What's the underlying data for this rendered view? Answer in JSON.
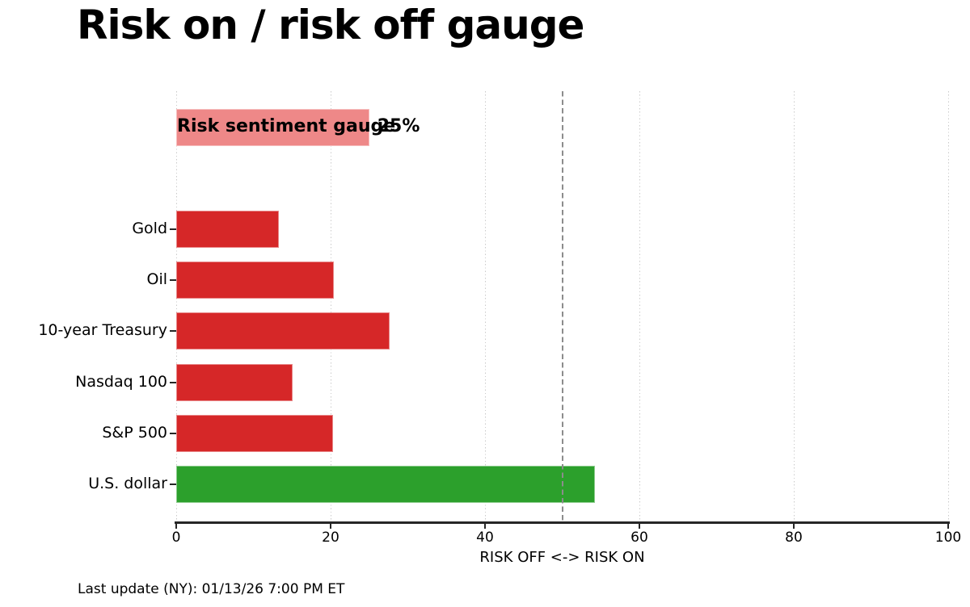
{
  "chart_data": {
    "type": "bar",
    "orientation": "horizontal",
    "title": "Risk on / risk off gauge",
    "xlabel": "RISK OFF <-> RISK ON",
    "footer": "Last update (NY): 01/13/26 7:00 PM ET",
    "xlim": [
      0,
      100
    ],
    "xticks": [
      0,
      20,
      40,
      60,
      80,
      100
    ],
    "grid": "dotted-vertical",
    "legend_position": "none",
    "threshold_line": {
      "x": 50,
      "style": "dashed",
      "color": "#8c8c8c"
    },
    "gauge": {
      "label": "Risk sentiment gauge",
      "value": 25,
      "value_label": "25%",
      "color": "#ee8888",
      "slot": 0
    },
    "series": [
      {
        "label": "Gold",
        "value": 13.3,
        "color": "#d62728",
        "slot": 2
      },
      {
        "label": "Oil",
        "value": 20.4,
        "color": "#d62728",
        "slot": 3
      },
      {
        "label": "10-year Treasury",
        "value": 27.6,
        "color": "#d62728",
        "slot": 4
      },
      {
        "label": "Nasdaq 100",
        "value": 15.1,
        "color": "#d62728",
        "slot": 5
      },
      {
        "label": "S&P 500",
        "value": 20.3,
        "color": "#d62728",
        "slot": 6
      },
      {
        "label": "U.S. dollar",
        "value": 54.2,
        "color": "#2ca02c",
        "slot": 7
      }
    ],
    "colors": {
      "risk_off": "#d62728",
      "risk_on": "#2ca02c",
      "gauge": "#ee8888",
      "axis": "#262626"
    }
  }
}
